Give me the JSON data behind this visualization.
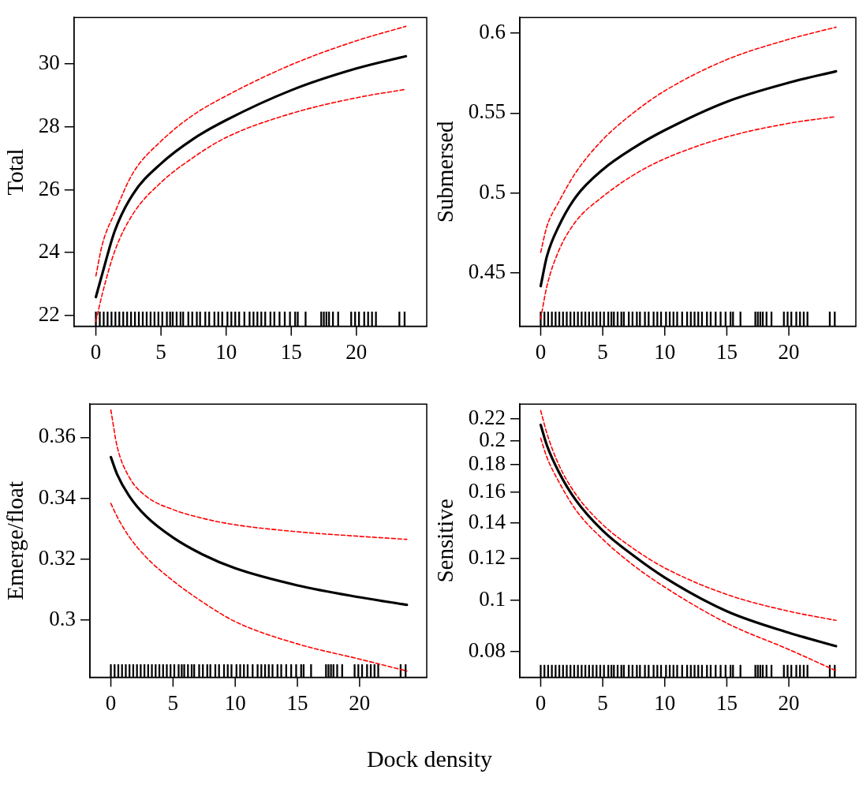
{
  "chart_data": [
    {
      "type": "line",
      "ylabel": "Total",
      "xlim": [
        -1.68,
        25.4
      ],
      "xticks": [
        0,
        5,
        10,
        15,
        20
      ],
      "ylim": [
        21.66,
        31.47
      ],
      "yticks": [
        22,
        24,
        26,
        28,
        30
      ],
      "series": [
        {
          "color": "#000000",
          "x": [
            0,
            0.5,
            1.45,
            2.85,
            5,
            7.5,
            10,
            15,
            20,
            23.8
          ],
          "values": [
            22.59,
            23.34,
            24.69,
            25.86,
            26.83,
            27.62,
            28.21,
            29.16,
            29.85,
            30.24
          ]
        },
        {
          "color": "#ff0000",
          "line_style": "dashed",
          "x": [
            0,
            0.5,
            1.45,
            2.85,
            5,
            7.5,
            10,
            15,
            20,
            23.8
          ],
          "values": [
            23.26,
            24.27,
            25.27,
            26.53,
            27.54,
            28.38,
            28.98,
            29.97,
            30.73,
            31.19
          ]
        },
        {
          "color": "#ff0000",
          "line_style": "dashed",
          "x": [
            0,
            0.5,
            1.45,
            2.85,
            5,
            7.5,
            10,
            15,
            20,
            23.8
          ],
          "values": [
            21.82,
            22.7,
            24.05,
            25.23,
            26.23,
            27.03,
            27.66,
            28.42,
            28.92,
            29.19
          ]
        },
        {
          "type": "bar",
          "color": "#000000",
          "x": [
            0,
            0.3,
            0.6,
            0.9,
            1.2,
            1.5,
            1.8,
            2.1,
            2.4,
            2.7,
            3.0,
            3.3,
            3.6,
            3.9,
            4.2,
            4.5,
            4.8,
            5.1,
            5.45,
            5.7,
            5.9,
            6.2,
            6.5,
            6.7,
            7.1,
            7.4,
            7.75,
            8.0,
            8.4,
            8.7,
            9.1,
            9.4,
            9.7,
            10.1,
            10.4,
            10.7,
            11.0,
            11.4,
            11.8,
            12.1,
            12.4,
            12.7,
            13.0,
            13.4,
            13.7,
            14.1,
            14.5,
            14.9,
            15.3,
            15.5,
            16.1,
            17.3,
            17.5,
            17.7,
            17.9,
            18.2,
            18.6,
            19.6,
            19.9,
            20.2,
            20.6,
            20.9,
            21.2,
            21.5,
            23.3,
            23.7
          ],
          "base": [
            21.66,
            21.66,
            21.66,
            21.66,
            21.66,
            21.66,
            21.66,
            21.66,
            21.66,
            21.66,
            21.66,
            21.66,
            21.66,
            21.66,
            21.66,
            21.66,
            21.66,
            21.66,
            21.66,
            21.66,
            21.66,
            21.66,
            21.66,
            21.66,
            21.66,
            21.66,
            21.66,
            21.66,
            21.66,
            21.66,
            21.66,
            21.66,
            21.66,
            21.66,
            21.66,
            21.66,
            21.66,
            21.66,
            21.66,
            21.66,
            21.66,
            21.66,
            21.66,
            21.66,
            21.66,
            21.66,
            21.66,
            21.66,
            21.66,
            21.66,
            21.66,
            21.66,
            21.66,
            21.66,
            21.66,
            21.66,
            21.66,
            21.66,
            21.66,
            21.66,
            21.66,
            21.66,
            21.66,
            21.66,
            21.66,
            21.66
          ],
          "values": [
            0.46,
            0.46,
            0.46,
            0.46,
            0.46,
            0.46,
            0.46,
            0.46,
            0.46,
            0.46,
            0.46,
            0.46,
            0.46,
            0.46,
            0.46,
            0.46,
            0.46,
            0.46,
            0.46,
            0.46,
            0.46,
            0.46,
            0.46,
            0.46,
            0.46,
            0.46,
            0.46,
            0.46,
            0.46,
            0.46,
            0.46,
            0.46,
            0.46,
            0.46,
            0.46,
            0.46,
            0.46,
            0.46,
            0.46,
            0.46,
            0.46,
            0.46,
            0.46,
            0.46,
            0.46,
            0.46,
            0.46,
            0.46,
            0.46,
            0.46,
            0.46,
            0.46,
            0.46,
            0.46,
            0.46,
            0.46,
            0.46,
            0.46,
            0.46,
            0.46,
            0.46,
            0.46,
            0.46,
            0.46,
            0.46,
            0.46
          ]
        }
      ]
    },
    {
      "type": "line",
      "ylabel": "Submersed",
      "xlim": [
        -1.68,
        25.4
      ],
      "xticks": [
        0,
        5,
        10,
        15,
        20
      ],
      "ylim": [
        0.4168,
        0.6097
      ],
      "yticks": [
        0.45,
        0.5,
        0.55,
        0.6
      ],
      "series": [
        {
          "color": "#000000",
          "x": [
            0,
            0.5,
            1.45,
            2.85,
            5,
            7.5,
            10,
            15,
            20,
            23.8
          ],
          "values": [
            0.4419,
            0.4605,
            0.4792,
            0.4978,
            0.5147,
            0.5283,
            0.5393,
            0.5571,
            0.569,
            0.5761
          ]
        },
        {
          "color": "#ff0000",
          "line_style": "dashed",
          "x": [
            0,
            0.5,
            1.45,
            2.85,
            5,
            7.5,
            10,
            15,
            20,
            23.8
          ],
          "values": [
            0.463,
            0.4792,
            0.4944,
            0.5131,
            0.5334,
            0.5503,
            0.5639,
            0.5834,
            0.5961,
            0.6037
          ]
        },
        {
          "color": "#ff0000",
          "line_style": "dashed",
          "x": [
            0,
            0.5,
            1.45,
            2.85,
            5,
            7.5,
            10,
            15,
            20,
            23.8
          ],
          "values": [
            0.4215,
            0.4419,
            0.4639,
            0.4825,
            0.4978,
            0.5114,
            0.5215,
            0.5351,
            0.5436,
            0.5478
          ]
        },
        {
          "type": "bar",
          "color": "#000000",
          "x": [
            0,
            0.3,
            0.6,
            0.9,
            1.2,
            1.5,
            1.8,
            2.1,
            2.4,
            2.7,
            3.0,
            3.3,
            3.6,
            3.9,
            4.2,
            4.5,
            4.8,
            5.1,
            5.45,
            5.7,
            5.9,
            6.2,
            6.5,
            6.7,
            7.1,
            7.4,
            7.75,
            8.0,
            8.4,
            8.7,
            9.1,
            9.4,
            9.7,
            10.1,
            10.4,
            10.7,
            11.0,
            11.4,
            11.8,
            12.1,
            12.4,
            12.7,
            13.0,
            13.4,
            13.7,
            14.1,
            14.5,
            14.9,
            15.3,
            15.5,
            16.1,
            17.3,
            17.5,
            17.7,
            17.9,
            18.2,
            18.6,
            19.6,
            19.9,
            20.2,
            20.6,
            20.9,
            21.2,
            21.5,
            23.3,
            23.7
          ],
          "base": [
            0.4168,
            0.4168,
            0.4168,
            0.4168,
            0.4168,
            0.4168,
            0.4168,
            0.4168,
            0.4168,
            0.4168,
            0.4168,
            0.4168,
            0.4168,
            0.4168,
            0.4168,
            0.4168,
            0.4168,
            0.4168,
            0.4168,
            0.4168,
            0.4168,
            0.4168,
            0.4168,
            0.4168,
            0.4168,
            0.4168,
            0.4168,
            0.4168,
            0.4168,
            0.4168,
            0.4168,
            0.4168,
            0.4168,
            0.4168,
            0.4168,
            0.4168,
            0.4168,
            0.4168,
            0.4168,
            0.4168,
            0.4168,
            0.4168,
            0.4168,
            0.4168,
            0.4168,
            0.4168,
            0.4168,
            0.4168,
            0.4168,
            0.4168,
            0.4168,
            0.4168,
            0.4168,
            0.4168,
            0.4168,
            0.4168,
            0.4168,
            0.4168,
            0.4168,
            0.4168,
            0.4168,
            0.4168,
            0.4168,
            0.4168,
            0.4168,
            0.4168
          ],
          "values": [
            0.009,
            0.009,
            0.009,
            0.009,
            0.009,
            0.009,
            0.009,
            0.009,
            0.009,
            0.009,
            0.009,
            0.009,
            0.009,
            0.009,
            0.009,
            0.009,
            0.009,
            0.009,
            0.009,
            0.009,
            0.009,
            0.009,
            0.009,
            0.009,
            0.009,
            0.009,
            0.009,
            0.009,
            0.009,
            0.009,
            0.009,
            0.009,
            0.009,
            0.009,
            0.009,
            0.009,
            0.009,
            0.009,
            0.009,
            0.009,
            0.009,
            0.009,
            0.009,
            0.009,
            0.009,
            0.009,
            0.009,
            0.009,
            0.009,
            0.009,
            0.009,
            0.009,
            0.009,
            0.009,
            0.009,
            0.009,
            0.009,
            0.009,
            0.009,
            0.009,
            0.009,
            0.009,
            0.009,
            0.009,
            0.009,
            0.009
          ]
        }
      ]
    },
    {
      "type": "line",
      "ylabel": "Emerge/float",
      "xlabel": "Dock density",
      "xlim": [
        -1.68,
        25.4
      ],
      "xticks": [
        0,
        5,
        10,
        15,
        20
      ],
      "ylim": [
        0.2812,
        0.3709
      ],
      "yticks": [
        0.3,
        0.32,
        0.34,
        0.36
      ],
      "series": [
        {
          "color": "#000000",
          "x": [
            0,
            0.5,
            1.45,
            2.85,
            5,
            7.5,
            10,
            15,
            20,
            23.8
          ],
          "values": [
            0.3535,
            0.3479,
            0.3409,
            0.334,
            0.3271,
            0.3213,
            0.317,
            0.3114,
            0.3075,
            0.305
          ]
        },
        {
          "color": "#ff0000",
          "line_style": "dashed",
          "x": [
            0,
            0.5,
            1.45,
            2.85,
            5,
            7.5,
            10,
            15,
            20,
            23.8
          ],
          "values": [
            0.369,
            0.3571,
            0.3471,
            0.3406,
            0.3363,
            0.3333,
            0.3313,
            0.329,
            0.3275,
            0.3265
          ]
        },
        {
          "color": "#ff0000",
          "line_style": "dashed",
          "x": [
            0,
            0.5,
            1.45,
            2.85,
            5,
            7.5,
            10,
            15,
            20,
            23.8
          ],
          "values": [
            0.3383,
            0.334,
            0.3275,
            0.3206,
            0.3129,
            0.3056,
            0.2995,
            0.2922,
            0.2872,
            0.2833
          ]
        },
        {
          "type": "bar",
          "color": "#000000",
          "x": [
            0,
            0.3,
            0.6,
            0.9,
            1.2,
            1.5,
            1.8,
            2.1,
            2.4,
            2.7,
            3.0,
            3.3,
            3.6,
            3.9,
            4.2,
            4.5,
            4.8,
            5.1,
            5.45,
            5.7,
            5.9,
            6.2,
            6.5,
            6.7,
            7.1,
            7.4,
            7.75,
            8.0,
            8.4,
            8.7,
            9.1,
            9.4,
            9.7,
            10.1,
            10.4,
            10.7,
            11.0,
            11.4,
            11.8,
            12.1,
            12.4,
            12.7,
            13.0,
            13.4,
            13.7,
            14.1,
            14.5,
            14.9,
            15.3,
            15.5,
            16.1,
            17.3,
            17.5,
            17.7,
            17.9,
            18.2,
            18.6,
            19.6,
            19.9,
            20.2,
            20.6,
            20.9,
            21.2,
            21.5,
            23.3,
            23.7
          ],
          "base": [
            0.2812,
            0.2812,
            0.2812,
            0.2812,
            0.2812,
            0.2812,
            0.2812,
            0.2812,
            0.2812,
            0.2812,
            0.2812,
            0.2812,
            0.2812,
            0.2812,
            0.2812,
            0.2812,
            0.2812,
            0.2812,
            0.2812,
            0.2812,
            0.2812,
            0.2812,
            0.2812,
            0.2812,
            0.2812,
            0.2812,
            0.2812,
            0.2812,
            0.2812,
            0.2812,
            0.2812,
            0.2812,
            0.2812,
            0.2812,
            0.2812,
            0.2812,
            0.2812,
            0.2812,
            0.2812,
            0.2812,
            0.2812,
            0.2812,
            0.2812,
            0.2812,
            0.2812,
            0.2812,
            0.2812,
            0.2812,
            0.2812,
            0.2812,
            0.2812,
            0.2812,
            0.2812,
            0.2812,
            0.2812,
            0.2812,
            0.2812,
            0.2812,
            0.2812,
            0.2812,
            0.2812,
            0.2812,
            0.2812,
            0.2812,
            0.2812,
            0.2812
          ],
          "values": [
            0.0042,
            0.0042,
            0.0042,
            0.0042,
            0.0042,
            0.0042,
            0.0042,
            0.0042,
            0.0042,
            0.0042,
            0.0042,
            0.0042,
            0.0042,
            0.0042,
            0.0042,
            0.0042,
            0.0042,
            0.0042,
            0.0042,
            0.0042,
            0.0042,
            0.0042,
            0.0042,
            0.0042,
            0.0042,
            0.0042,
            0.0042,
            0.0042,
            0.0042,
            0.0042,
            0.0042,
            0.0042,
            0.0042,
            0.0042,
            0.0042,
            0.0042,
            0.0042,
            0.0042,
            0.0042,
            0.0042,
            0.0042,
            0.0042,
            0.0042,
            0.0042,
            0.0042,
            0.0042,
            0.0042,
            0.0042,
            0.0042,
            0.0042,
            0.0042,
            0.0042,
            0.0042,
            0.0042,
            0.0042,
            0.0042,
            0.0042,
            0.0042,
            0.0042,
            0.0042,
            0.0042,
            0.0042,
            0.0042,
            0.0042,
            0.0042,
            0.0042
          ]
        }
      ]
    },
    {
      "type": "line",
      "ylabel": "Sensitive",
      "log": "y",
      "xlim": [
        -1.68,
        25.4
      ],
      "xticks": [
        0,
        5,
        10,
        15,
        20
      ],
      "ylim": [
        0.0716,
        0.2343
      ],
      "yticks": [
        0.08,
        0.1,
        0.12,
        0.14,
        0.16,
        0.18,
        0.2,
        0.22
      ],
      "series": [
        {
          "color": "#000000",
          "x": [
            0,
            0.5,
            1.45,
            2.85,
            5,
            7.5,
            10,
            15,
            20,
            23.8
          ],
          "values": [
            0.2141,
            0.1959,
            0.1747,
            0.1542,
            0.1353,
            0.1213,
            0.1104,
            0.0954,
            0.0869,
            0.082
          ]
        },
        {
          "color": "#ff0000",
          "line_style": "dashed",
          "x": [
            0,
            0.5,
            1.45,
            2.85,
            5,
            7.5,
            10,
            15,
            20,
            23.8
          ],
          "values": [
            0.2278,
            0.2064,
            0.1803,
            0.1582,
            0.1389,
            0.1251,
            0.1151,
            0.1026,
            0.0954,
            0.0917
          ]
        },
        {
          "color": "#ff0000",
          "line_style": "dashed",
          "x": [
            0,
            0.5,
            1.45,
            2.85,
            5,
            7.5,
            10,
            15,
            20,
            23.8
          ],
          "values": [
            0.2021,
            0.186,
            0.1675,
            0.1478,
            0.1304,
            0.1163,
            0.1059,
            0.0906,
            0.0808,
            0.0737
          ]
        },
        {
          "type": "bar",
          "color": "#000000",
          "x": [
            0,
            0.3,
            0.6,
            0.9,
            1.2,
            1.5,
            1.8,
            2.1,
            2.4,
            2.7,
            3.0,
            3.3,
            3.6,
            3.9,
            4.2,
            4.5,
            4.8,
            5.1,
            5.45,
            5.7,
            5.9,
            6.2,
            6.5,
            6.7,
            7.1,
            7.4,
            7.75,
            8.0,
            8.4,
            8.7,
            9.1,
            9.4,
            9.7,
            10.1,
            10.4,
            10.7,
            11.0,
            11.4,
            11.8,
            12.1,
            12.4,
            12.7,
            13.0,
            13.4,
            13.7,
            14.1,
            14.5,
            14.9,
            15.3,
            15.5,
            16.1,
            17.3,
            17.5,
            17.7,
            17.9,
            18.2,
            18.6,
            19.6,
            19.9,
            20.2,
            20.6,
            20.9,
            21.2,
            21.5,
            23.3,
            23.7
          ],
          "base": [
            0.0716,
            0.0716,
            0.0716,
            0.0716,
            0.0716,
            0.0716,
            0.0716,
            0.0716,
            0.0716,
            0.0716,
            0.0716,
            0.0716,
            0.0716,
            0.0716,
            0.0716,
            0.0716,
            0.0716,
            0.0716,
            0.0716,
            0.0716,
            0.0716,
            0.0716,
            0.0716,
            0.0716,
            0.0716,
            0.0716,
            0.0716,
            0.0716,
            0.0716,
            0.0716,
            0.0716,
            0.0716,
            0.0716,
            0.0716,
            0.0716,
            0.0716,
            0.0716,
            0.0716,
            0.0716,
            0.0716,
            0.0716,
            0.0716,
            0.0716,
            0.0716,
            0.0716,
            0.0716,
            0.0716,
            0.0716,
            0.0716,
            0.0716,
            0.0716,
            0.0716,
            0.0716,
            0.0716,
            0.0716,
            0.0716,
            0.0716,
            0.0716,
            0.0716,
            0.0716,
            0.0716,
            0.0716,
            0.0716,
            0.0716,
            0.0716,
            0.0716
          ],
          "values": [
            0.0039,
            0.0039,
            0.0039,
            0.0039,
            0.0039,
            0.0039,
            0.0039,
            0.0039,
            0.0039,
            0.0039,
            0.0039,
            0.0039,
            0.0039,
            0.0039,
            0.0039,
            0.0039,
            0.0039,
            0.0039,
            0.0039,
            0.0039,
            0.0039,
            0.0039,
            0.0039,
            0.0039,
            0.0039,
            0.0039,
            0.0039,
            0.0039,
            0.0039,
            0.0039,
            0.0039,
            0.0039,
            0.0039,
            0.0039,
            0.0039,
            0.0039,
            0.0039,
            0.0039,
            0.0039,
            0.0039,
            0.0039,
            0.0039,
            0.0039,
            0.0039,
            0.0039,
            0.0039,
            0.0039,
            0.0039,
            0.0039,
            0.0039,
            0.0039,
            0.0039,
            0.0039,
            0.0039,
            0.0039,
            0.0039,
            0.0039,
            0.0039,
            0.0039,
            0.0039,
            0.0039,
            0.0039,
            0.0039,
            0.0039,
            0.0039,
            0.0039
          ]
        }
      ]
    }
  ]
}
